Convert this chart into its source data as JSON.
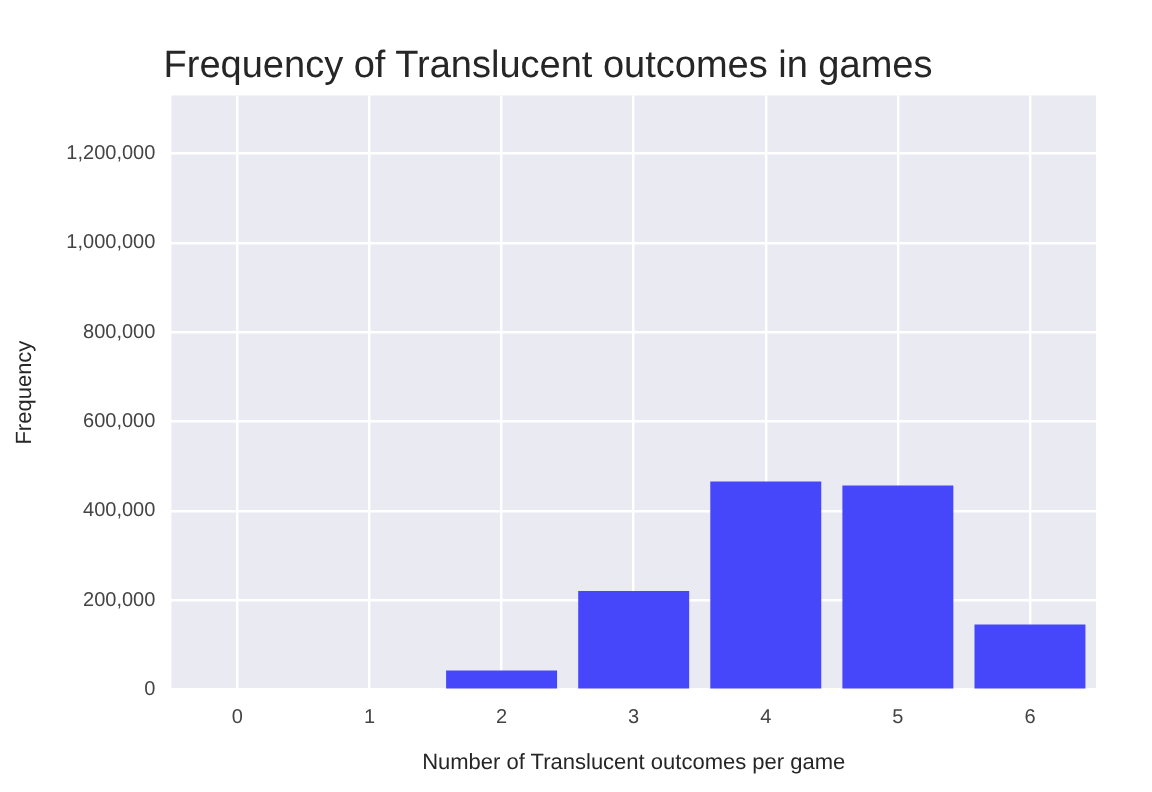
{
  "chart_data": {
    "type": "bar",
    "title": "Frequency of Translucent outcomes in games",
    "xlabel": "Number of Translucent outcomes per game",
    "ylabel": "Frequency",
    "categories": [
      "0",
      "1",
      "2",
      "3",
      "4",
      "5",
      "6"
    ],
    "values": [
      0,
      0,
      43000,
      221000,
      466000,
      457000,
      146000
    ],
    "color": "#4646fb",
    "ylim": [
      0,
      1330000
    ],
    "yticks": [
      {
        "value": 0,
        "label": "0"
      },
      {
        "value": 200000,
        "label": "200,000"
      },
      {
        "value": 400000,
        "label": "400,000"
      },
      {
        "value": 600000,
        "label": "600,000"
      },
      {
        "value": 800000,
        "label": "800,000"
      },
      {
        "value": 1000000,
        "label": "1,000,000"
      },
      {
        "value": 1200000,
        "label": "1,200,000"
      }
    ],
    "grid": true,
    "legend": false
  }
}
